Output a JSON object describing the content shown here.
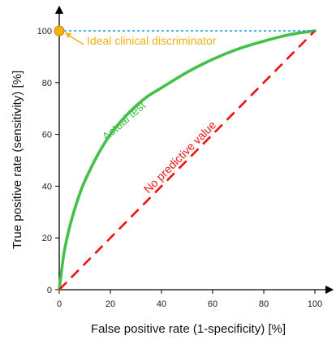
{
  "chart_data": {
    "type": "line",
    "title": "",
    "xlabel": "False positive rate (1-specificity) [%]",
    "ylabel": "True positive rate (sensitivity)  [%]",
    "xlim": [
      0,
      100
    ],
    "ylim": [
      0,
      100
    ],
    "x_ticks": [
      0,
      20,
      40,
      60,
      80,
      100
    ],
    "y_ticks": [
      0,
      20,
      40,
      60,
      80,
      100
    ],
    "x_tick_labels": [
      "0",
      "20",
      "40",
      "60",
      "80",
      "100"
    ],
    "y_tick_labels": [
      "0",
      "20",
      "40",
      "60",
      "80",
      "100"
    ],
    "grid": false,
    "series": [
      {
        "name": "Actual test",
        "color": "#44c04a",
        "style": "solid",
        "x": [
          0,
          1,
          2,
          4,
          6,
          8,
          10,
          15,
          20,
          25,
          30,
          35,
          40,
          50,
          60,
          70,
          80,
          90,
          100
        ],
        "y": [
          0,
          8,
          15,
          24,
          31,
          37,
          42,
          52,
          60,
          66,
          71,
          75,
          78,
          84,
          89,
          93,
          96,
          98.5,
          100
        ]
      },
      {
        "name": "No predictive value",
        "color": "#ee1111",
        "style": "dashed",
        "x": [
          0,
          100
        ],
        "y": [
          0,
          100
        ]
      },
      {
        "name": "Ideal clinical discriminator",
        "color": "#1a9be0",
        "style": "dotted",
        "x": [
          0,
          100
        ],
        "y": [
          100,
          100
        ]
      }
    ],
    "points": [
      {
        "label": "Ideal clinical discriminator",
        "x": 0,
        "y": 100,
        "color": "#f2b20f"
      }
    ],
    "annotations": [
      {
        "text": "Ideal clinical discriminator",
        "color": "#f2b20f"
      },
      {
        "text": "Actual test",
        "color": "#44c04a"
      },
      {
        "text": "No predictive value",
        "color": "#ee1111"
      }
    ]
  }
}
